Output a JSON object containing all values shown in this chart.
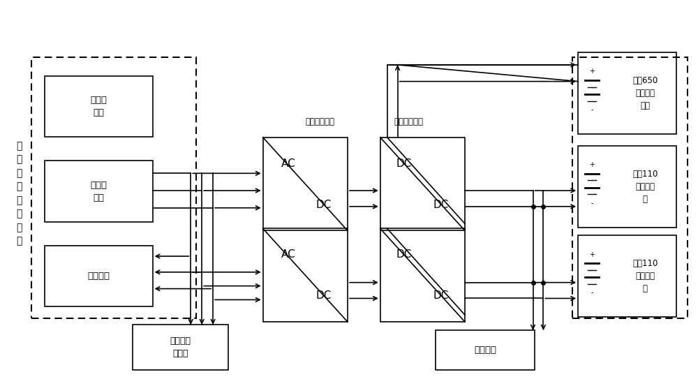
{
  "bg": "#ffffff",
  "lc": "#000000",
  "figsize": [
    10.0,
    5.53
  ],
  "dpi": 100,
  "labels": {
    "side_label": "牵\n引\n系\n统\n交\n流\n负\n载",
    "traction": "牵引变\n流器",
    "aux": "辅助变\n流器",
    "cooling": "冷却系统",
    "three_phase": "三相全桥电路",
    "phase_shift": "移相全桥电路",
    "ac_load": "空调等交\n流负载",
    "dc_load": "直流负载",
    "bat650": "直流650\n伏动力电\n池组",
    "bat110a": "直流110\n伏蓄电池\n组",
    "bat110b": "直流110\n伏蓄电池\n组"
  }
}
